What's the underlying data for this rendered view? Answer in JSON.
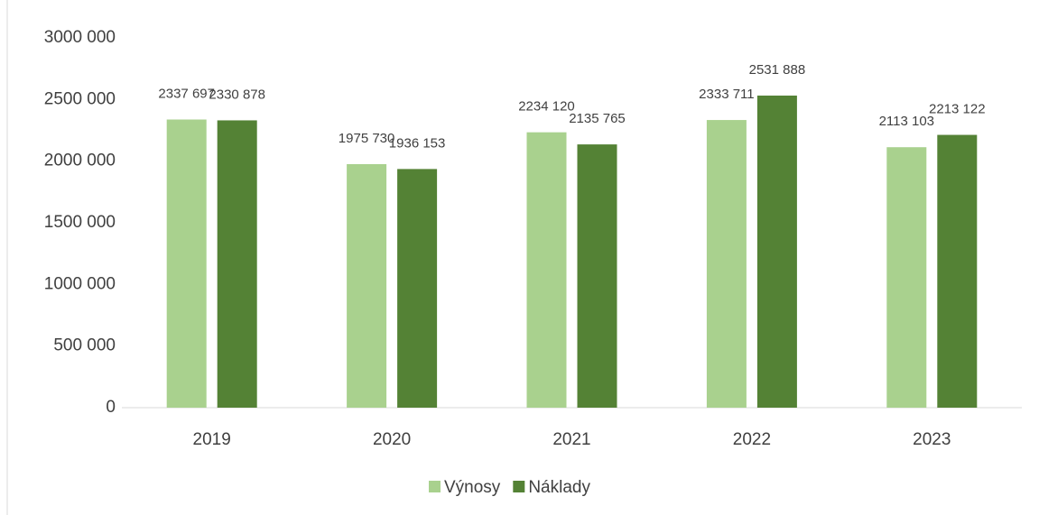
{
  "chart_data": {
    "type": "bar",
    "categories": [
      "2019",
      "2020",
      "2021",
      "2022",
      "2023"
    ],
    "series": [
      {
        "name": "Výnosy",
        "color": "#a9d18e",
        "values": [
          2337697,
          1975730,
          2234120,
          2333711,
          2113103
        ],
        "value_labels": [
          "2337 697",
          "1975 730",
          "2234 120",
          "2333 711",
          "2113 103"
        ]
      },
      {
        "name": "Náklady",
        "color": "#548235",
        "values": [
          2330878,
          1936153,
          2135765,
          2531888,
          2213122
        ],
        "value_labels": [
          "2330 878",
          "1936 153",
          "2135 765",
          "2531 888",
          "2213 122"
        ]
      }
    ],
    "ylim": [
      0,
      3000000
    ],
    "yticks": [
      0,
      {
        "value": 500000,
        "label": "500 000"
      },
      {
        "value": 1000000,
        "label": "1000 000"
      },
      {
        "value": 1500000,
        "label": "1500 000"
      },
      {
        "value": 2000000,
        "label": "2000 000"
      },
      {
        "value": 2500000,
        "label": "2500 000"
      },
      {
        "value": 3000000,
        "label": "3000 000"
      }
    ],
    "grid": false,
    "legend": "bottom"
  }
}
